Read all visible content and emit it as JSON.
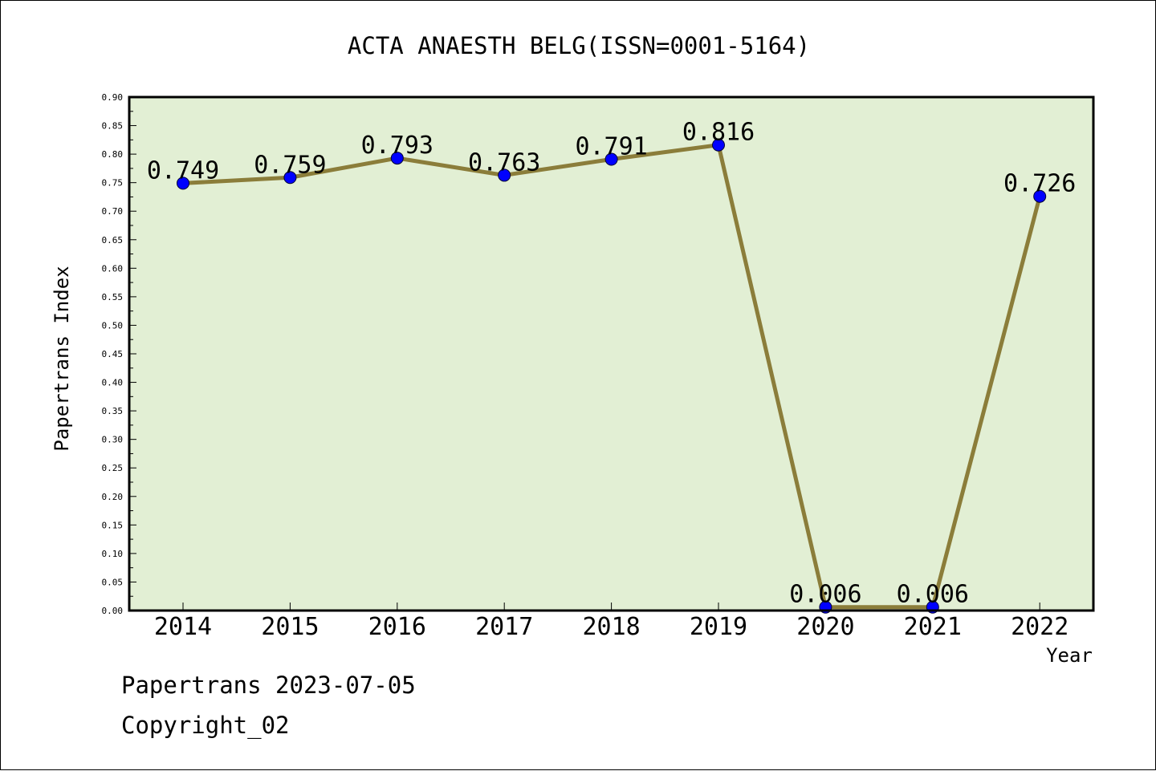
{
  "chart_data": {
    "type": "line",
    "title": "ACTA ANAESTH BELG(ISSN=0001-5164)",
    "xlabel": "Year",
    "ylabel": "Papertrans Index",
    "categories": [
      "2014",
      "2015",
      "2016",
      "2017",
      "2018",
      "2019",
      "2020",
      "2021",
      "2022"
    ],
    "series": [
      {
        "values": [
          0.749,
          0.759,
          0.793,
          0.763,
          0.791,
          0.816,
          0.006,
          0.006,
          0.726
        ]
      }
    ],
    "data_labels": [
      "0.749",
      "0.759",
      "0.793",
      "0.763",
      "0.791",
      "0.816",
      "0.006",
      "0.006",
      "0.726"
    ],
    "ylim": [
      0,
      0.9
    ],
    "yticks": [
      "0.00",
      "0.05",
      "0.10",
      "0.15",
      "0.20",
      "0.25",
      "0.30",
      "0.35",
      "0.40",
      "0.45",
      "0.50",
      "0.55",
      "0.60",
      "0.65",
      "0.70",
      "0.75",
      "0.80",
      "0.85",
      "0.90"
    ],
    "grid": false,
    "colors": {
      "plot_background": "#e2efd4",
      "line": "#8b7d3a",
      "marker": "#0000ff"
    }
  },
  "footer": {
    "date_line": "Papertrans 2023-07-05",
    "copyright": "Copyright_02"
  }
}
